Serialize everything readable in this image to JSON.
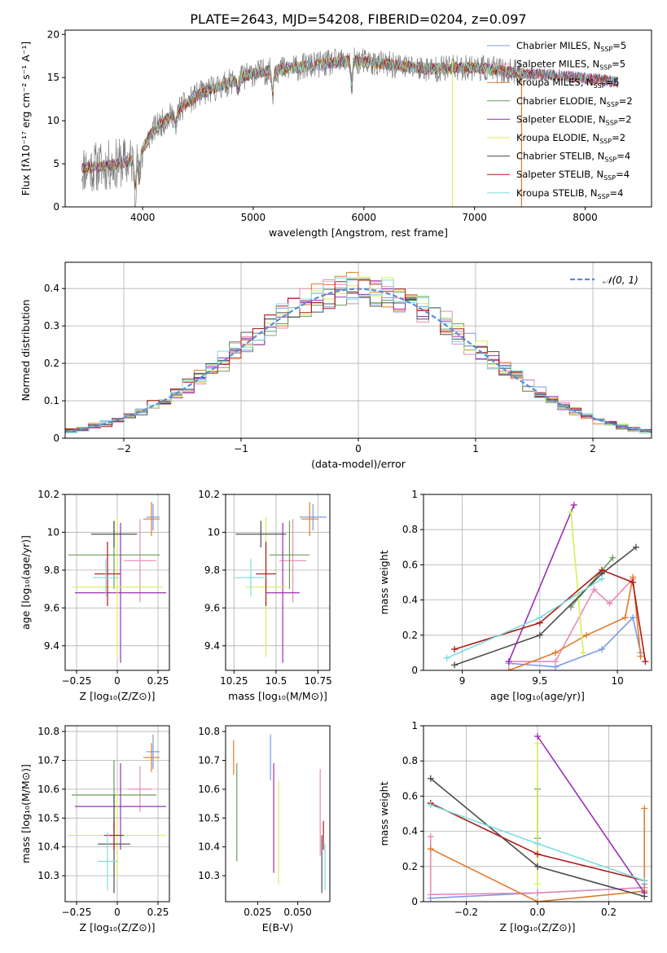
{
  "figure_title": "PLATE=2643, MJD=54208, FIBERID=0204, z=0.097",
  "colors": {
    "chab_miles": "#7b9ae6",
    "salp_miles": "#e88ab8",
    "krou_miles": "#e07b2a",
    "chab_elodie": "#6a9a5a",
    "salp_elodie": "#9b2fb5",
    "krou_elodie": "#d4ef5a",
    "chab_stelib": "#4d4d4d",
    "salp_stelib": "#b01818",
    "krou_stelib": "#7fdcdc",
    "data_spectrum": "#808080",
    "normal_curve": "#5b8bd6"
  },
  "chart_data": [
    {
      "id": "spectrum",
      "type": "line",
      "xlabel": "wavelength [Angstrom, rest frame]",
      "ylabel": "Flux [fλ10⁻¹⁷ erg cm⁻² s⁻¹ A⁻¹]",
      "xlim": [
        3300,
        8600
      ],
      "ylim": [
        0,
        20.5
      ],
      "xticks": [
        4000,
        5000,
        6000,
        7000,
        8000
      ],
      "yticks": [
        0,
        5,
        10,
        15,
        20
      ],
      "grid": false,
      "legend_position": "right",
      "continuum": {
        "x": [
          3450,
          3700,
          3950,
          4100,
          4300,
          4500,
          4800,
          5000,
          5300,
          5600,
          5900,
          6200,
          6600,
          7000,
          7400,
          7800,
          8300
        ],
        "y": [
          4.5,
          4.8,
          5.5,
          9,
          11,
          13,
          14.5,
          15.5,
          16,
          16.5,
          17,
          16.5,
          16,
          16.2,
          15.5,
          15.2,
          14.5
        ]
      },
      "absorption_lines": [
        {
          "x": 3934,
          "depth": 3
        },
        {
          "x": 3969,
          "depth": 3
        },
        {
          "x": 4300,
          "depth": 2
        },
        {
          "x": 4861,
          "depth": 1.5
        },
        {
          "x": 5175,
          "depth": 2.5
        },
        {
          "x": 5890,
          "depth": 3
        }
      ],
      "series": [
        {
          "name": "Chabrier MILES, N_SSP=5",
          "legend_label": "Chabrier MILES, N",
          "legend_value": "=5",
          "color_key": "chab_miles"
        },
        {
          "name": "Salpeter MILES, N_SSP=5",
          "legend_label": "Salpeter MILES, N",
          "legend_value": "=5",
          "color_key": "salp_miles"
        },
        {
          "name": "Kroupa MILES, N_SSP=5",
          "legend_label": "Kroupa MILES, N",
          "legend_value": "=5",
          "color_key": "krou_miles"
        },
        {
          "name": "Chabrier ELODIE, N_SSP=2",
          "legend_label": "Chabrier ELODIE, N",
          "legend_value": "=2",
          "color_key": "chab_elodie"
        },
        {
          "name": "Salpeter ELODIE, N_SSP=2",
          "legend_label": "Salpeter ELODIE, N",
          "legend_value": "=2",
          "color_key": "salp_elodie"
        },
        {
          "name": "Kroupa ELODIE, N_SSP=2",
          "legend_label": "Kroupa ELODIE, N",
          "legend_value": "=2",
          "color_key": "krou_elodie"
        },
        {
          "name": "Chabrier STELIB, N_SSP=4",
          "legend_label": "Chabrier STELIB, N",
          "legend_value": "=4",
          "color_key": "chab_stelib"
        },
        {
          "name": "Salpeter STELIB, N_SSP=4",
          "legend_label": "Salpeter STELIB, N",
          "legend_value": "=4",
          "color_key": "salp_stelib"
        },
        {
          "name": "Kroupa STELIB, N_SSP=4",
          "legend_label": "Kroupa STELIB, N",
          "legend_value": "=4",
          "color_key": "krou_stelib"
        }
      ]
    },
    {
      "id": "residuals",
      "type": "line",
      "xlabel": "(data-model)/error",
      "ylabel": "Normed distribution",
      "xlim": [
        -2.5,
        2.5
      ],
      "ylim": [
        0,
        0.47
      ],
      "xticks": [
        -2,
        -1,
        0,
        1,
        2
      ],
      "yticks": [
        0.0,
        0.1,
        0.2,
        0.3,
        0.4
      ],
      "grid": true,
      "legend_position": "top-right",
      "legend_label": "𝒩(0, 1)",
      "bin_width": 0.1
    },
    {
      "id": "z_age",
      "type": "scatter",
      "xlabel": "Z [log₁₀(Z/Z⊙)]",
      "ylabel": "age  [log₁₀(age/yr)]",
      "xlim": [
        -0.32,
        0.32
      ],
      "ylim": [
        9.27,
        10.2
      ],
      "xticks": [
        -0.25,
        0.0,
        0.25
      ],
      "yticks": [
        9.4,
        9.6,
        9.8,
        10.0,
        10.2
      ],
      "grid": true,
      "points": [
        {
          "color_key": "chab_miles",
          "x": 0.22,
          "y": 10.08,
          "xerr": 0.04,
          "yerr": 0.07
        },
        {
          "color_key": "krou_miles",
          "x": 0.21,
          "y": 10.07,
          "xerr": 0.05,
          "yerr": 0.09
        },
        {
          "color_key": "salp_miles",
          "x": 0.14,
          "y": 9.85,
          "xerr": 0.1,
          "yerr": 0.22
        },
        {
          "color_key": "chab_elodie",
          "x": -0.02,
          "y": 9.88,
          "xerr": 0.28,
          "yerr": 0.18
        },
        {
          "color_key": "salp_elodie",
          "x": 0.02,
          "y": 9.68,
          "xerr": 0.28,
          "yerr": 0.37
        },
        {
          "color_key": "krou_elodie",
          "x": 0.0,
          "y": 9.71,
          "xerr": 0.28,
          "yerr": 0.37
        },
        {
          "color_key": "chab_stelib",
          "x": -0.02,
          "y": 9.99,
          "xerr": 0.14,
          "yerr": 0.07
        },
        {
          "color_key": "salp_stelib",
          "x": -0.06,
          "y": 9.78,
          "xerr": 0.08,
          "yerr": 0.17
        },
        {
          "color_key": "krou_stelib",
          "x": -0.07,
          "y": 9.76,
          "xerr": 0.08,
          "yerr": 0.1
        }
      ]
    },
    {
      "id": "mass_age",
      "type": "scatter",
      "xlabel": "mass [log₁₀(M/M⊙)]",
      "ylabel": "",
      "xlim": [
        10.2,
        10.82
      ],
      "ylim": [
        9.27,
        10.2
      ],
      "xticks": [
        10.25,
        10.5,
        10.75
      ],
      "yticks": [
        9.4,
        9.6,
        9.8,
        10.0,
        10.2
      ],
      "grid": true,
      "points": [
        {
          "color_key": "chab_miles",
          "x": 10.72,
          "y": 10.08,
          "xerr": 0.08,
          "yerr": 0.07
        },
        {
          "color_key": "krou_miles",
          "x": 10.7,
          "y": 10.07,
          "xerr": 0.05,
          "yerr": 0.09
        },
        {
          "color_key": "salp_miles",
          "x": 10.6,
          "y": 9.85,
          "xerr": 0.08,
          "yerr": 0.22
        },
        {
          "color_key": "chab_elodie",
          "x": 10.58,
          "y": 9.88,
          "xerr": 0.12,
          "yerr": 0.18
        },
        {
          "color_key": "salp_elodie",
          "x": 10.54,
          "y": 9.68,
          "xerr": 0.1,
          "yerr": 0.37
        },
        {
          "color_key": "krou_elodie",
          "x": 10.44,
          "y": 9.71,
          "xerr": 0.12,
          "yerr": 0.37
        },
        {
          "color_key": "chab_stelib",
          "x": 10.41,
          "y": 9.99,
          "xerr": 0.15,
          "yerr": 0.07
        },
        {
          "color_key": "salp_stelib",
          "x": 10.44,
          "y": 9.78,
          "xerr": 0.06,
          "yerr": 0.17
        },
        {
          "color_key": "krou_stelib",
          "x": 10.35,
          "y": 9.76,
          "xerr": 0.1,
          "yerr": 0.1
        }
      ]
    },
    {
      "id": "age_weight",
      "type": "line",
      "xlabel": "age  [log₁₀(age/yr)]",
      "ylabel": "mass weight",
      "xlim": [
        8.75,
        10.22
      ],
      "ylim": [
        0,
        1.0
      ],
      "xticks": [
        9.0,
        9.5,
        10.0
      ],
      "yticks": [
        0.0,
        0.2,
        0.4,
        0.6,
        0.8,
        1.0
      ],
      "grid": true,
      "series": [
        {
          "color_key": "chab_miles",
          "x": [
            9.3,
            9.6,
            9.9,
            10.1,
            10.15
          ],
          "y": [
            0.04,
            0.02,
            0.12,
            0.3,
            0.1
          ]
        },
        {
          "color_key": "salp_miles",
          "x": [
            9.3,
            9.6,
            9.85,
            9.95,
            10.1
          ],
          "y": [
            0.05,
            0.05,
            0.46,
            0.38,
            0.52
          ]
        },
        {
          "color_key": "krou_miles",
          "x": [
            9.3,
            9.6,
            9.8,
            10.05,
            10.1,
            10.15
          ],
          "y": [
            0.0,
            0.1,
            0.2,
            0.3,
            0.53,
            0.08
          ]
        },
        {
          "color_key": "chab_elodie",
          "x": [
            9.7,
            9.97
          ],
          "y": [
            0.36,
            0.64
          ]
        },
        {
          "color_key": "salp_elodie",
          "x": [
            9.3,
            9.72
          ],
          "y": [
            0.05,
            0.94
          ]
        },
        {
          "color_key": "krou_elodie",
          "x": [
            9.7,
            9.78
          ],
          "y": [
            0.9,
            0.1
          ]
        },
        {
          "color_key": "chab_stelib",
          "x": [
            8.95,
            9.5,
            9.9,
            10.12
          ],
          "y": [
            0.03,
            0.2,
            0.55,
            0.7
          ]
        },
        {
          "color_key": "salp_stelib",
          "x": [
            8.95,
            9.5,
            9.9,
            10.1,
            10.18
          ],
          "y": [
            0.12,
            0.27,
            0.57,
            0.5,
            0.05
          ]
        },
        {
          "color_key": "krou_stelib",
          "x": [
            8.9,
            9.5,
            9.9
          ],
          "y": [
            0.07,
            0.3,
            0.52
          ]
        }
      ]
    },
    {
      "id": "z_mass",
      "type": "scatter",
      "xlabel": "Z [log₁₀(Z/Z⊙)]",
      "ylabel": "mass [log₁₀(M/M⊙)]",
      "xlim": [
        -0.32,
        0.32
      ],
      "ylim": [
        10.21,
        10.82
      ],
      "xticks": [
        -0.25,
        0.0,
        0.25
      ],
      "yticks": [
        10.3,
        10.4,
        10.5,
        10.6,
        10.7,
        10.8
      ],
      "grid": true,
      "points": [
        {
          "color_key": "chab_miles",
          "x": 0.22,
          "y": 10.73,
          "xerr": 0.04,
          "yerr": 0.06
        },
        {
          "color_key": "krou_miles",
          "x": 0.21,
          "y": 10.71,
          "xerr": 0.05,
          "yerr": 0.05
        },
        {
          "color_key": "salp_miles",
          "x": 0.14,
          "y": 10.6,
          "xerr": 0.07,
          "yerr": 0.08
        },
        {
          "color_key": "chab_elodie",
          "x": -0.02,
          "y": 10.58,
          "xerr": 0.26,
          "yerr": 0.12
        },
        {
          "color_key": "salp_elodie",
          "x": 0.02,
          "y": 10.54,
          "xerr": 0.28,
          "yerr": 0.15
        },
        {
          "color_key": "krou_elodie",
          "x": 0.0,
          "y": 10.44,
          "xerr": 0.3,
          "yerr": 0.15
        },
        {
          "color_key": "chab_stelib",
          "x": -0.02,
          "y": 10.41,
          "xerr": 0.1,
          "yerr": 0.17
        },
        {
          "color_key": "salp_stelib",
          "x": -0.02,
          "y": 10.44,
          "xerr": 0.06,
          "yerr": 0.05
        },
        {
          "color_key": "krou_stelib",
          "x": -0.06,
          "y": 10.35,
          "xerr": 0.06,
          "yerr": 0.1
        }
      ]
    },
    {
      "id": "ebv_mass",
      "type": "scatter",
      "xlabel": "E(B-V)",
      "ylabel": "",
      "xlim": [
        0.005,
        0.07
      ],
      "ylim": [
        10.21,
        10.82
      ],
      "xticks": [
        0.025,
        0.05
      ],
      "xticklabels": [
        "0.025",
        "0.050"
      ],
      "yticks": [
        10.3,
        10.4,
        10.5,
        10.6,
        10.7,
        10.8
      ],
      "grid": false,
      "points": [
        {
          "color_key": "krou_miles",
          "x": 0.01,
          "y": 10.71,
          "xerr": 0,
          "yerr": 0.06
        },
        {
          "color_key": "chab_elodie",
          "x": 0.012,
          "y": 10.52,
          "xerr": 0,
          "yerr": 0.17
        },
        {
          "color_key": "chab_miles",
          "x": 0.033,
          "y": 10.71,
          "xerr": 0,
          "yerr": 0.08
        },
        {
          "color_key": "salp_elodie",
          "x": 0.035,
          "y": 10.5,
          "xerr": 0,
          "yerr": 0.19
        },
        {
          "color_key": "krou_elodie",
          "x": 0.038,
          "y": 10.45,
          "xerr": 0,
          "yerr": 0.18
        },
        {
          "color_key": "salp_miles",
          "x": 0.064,
          "y": 10.52,
          "xerr": 0,
          "yerr": 0.15
        },
        {
          "color_key": "chab_stelib",
          "x": 0.065,
          "y": 10.34,
          "xerr": 0,
          "yerr": 0.1
        },
        {
          "color_key": "salp_stelib",
          "x": 0.066,
          "y": 10.44,
          "xerr": 0,
          "yerr": 0.05
        },
        {
          "color_key": "krou_stelib",
          "x": 0.067,
          "y": 10.33,
          "xerr": 0,
          "yerr": 0.08
        }
      ]
    },
    {
      "id": "z_weight",
      "type": "line",
      "xlabel": "Z [log₁₀(Z/Z⊙)]",
      "ylabel": "mass weight",
      "xlim": [
        -0.32,
        0.32
      ],
      "ylim": [
        0,
        1.0
      ],
      "xticks": [
        -0.2,
        0.0,
        0.2
      ],
      "xticklabels": [
        "−0.2",
        "0.0",
        "0.2"
      ],
      "yticks": [
        0.0,
        0.2,
        0.4,
        0.6,
        0.8,
        1.0
      ],
      "grid": true,
      "series": [
        {
          "color_key": "chab_miles",
          "x": [
            -0.3,
            0.0,
            0.3,
            0.3
          ],
          "y": [
            0.02,
            0.05,
            0.08,
            0.1
          ]
        },
        {
          "color_key": "salp_miles",
          "x": [
            -0.3,
            -0.3,
            0.0,
            0.3
          ],
          "y": [
            0.37,
            0.04,
            0.05,
            0.08
          ]
        },
        {
          "color_key": "krou_miles",
          "x": [
            -0.3,
            0.0,
            0.3,
            0.3
          ],
          "y": [
            0.3,
            0.0,
            0.06,
            0.53
          ]
        },
        {
          "color_key": "chab_elodie",
          "x": [
            0.0,
            0.0
          ],
          "y": [
            0.36,
            0.64
          ]
        },
        {
          "color_key": "salp_elodie",
          "x": [
            0.0,
            0.3
          ],
          "y": [
            0.94,
            0.05
          ]
        },
        {
          "color_key": "krou_elodie",
          "x": [
            0.0,
            0.0
          ],
          "y": [
            0.9,
            0.1
          ]
        },
        {
          "color_key": "chab_stelib",
          "x": [
            -0.3,
            0.0,
            0.3
          ],
          "y": [
            0.7,
            0.2,
            0.03
          ]
        },
        {
          "color_key": "salp_stelib",
          "x": [
            -0.3,
            0.0,
            0.3
          ],
          "y": [
            0.56,
            0.27,
            0.12
          ]
        },
        {
          "color_key": "krou_stelib",
          "x": [
            -0.3,
            0.0,
            0.3
          ],
          "y": [
            0.55,
            0.33,
            0.12
          ]
        }
      ]
    }
  ]
}
